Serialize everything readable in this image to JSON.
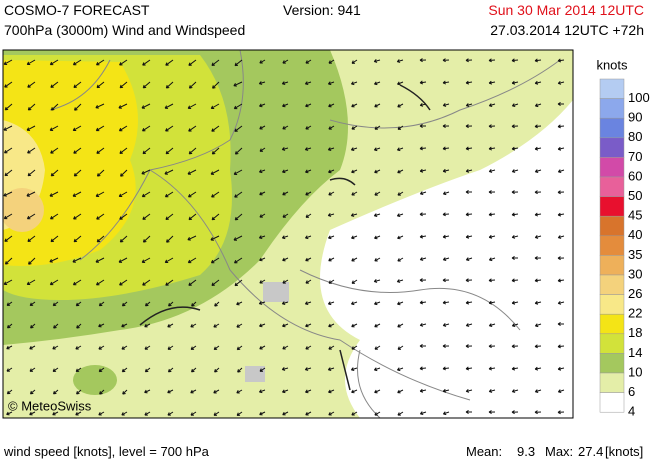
{
  "header": {
    "title": "COSMO-7 FORECAST",
    "version": "Version: 941",
    "valid_time": "Sun 30 Mar 2014 12UTC",
    "subtitle": "700hPa (3000m) Wind and Windspeed",
    "run_time": "27.03.2014 12UTC +72h"
  },
  "map": {
    "copyright": "© MeteoSwiss"
  },
  "legend": {
    "unit": "knots",
    "levels": [
      {
        "value": 100,
        "color": "#b4ccf2"
      },
      {
        "value": 90,
        "color": "#8ca8ec"
      },
      {
        "value": 80,
        "color": "#6a84e0"
      },
      {
        "value": 70,
        "color": "#7a5cc8"
      },
      {
        "value": 60,
        "color": "#d24aa8"
      },
      {
        "value": 50,
        "color": "#e8609a"
      },
      {
        "value": 45,
        "color": "#e8102e"
      },
      {
        "value": 40,
        "color": "#d8742c"
      },
      {
        "value": 35,
        "color": "#e48c3c"
      },
      {
        "value": 30,
        "color": "#eeb05a"
      },
      {
        "value": 26,
        "color": "#f4d27c"
      },
      {
        "value": 22,
        "color": "#f8e888"
      },
      {
        "value": 18,
        "color": "#f4e416"
      },
      {
        "value": 14,
        "color": "#d2e23a"
      },
      {
        "value": 10,
        "color": "#a4c85e"
      },
      {
        "value": 6,
        "color": "#e4eea8"
      },
      {
        "value": 4,
        "color": "#ffffff"
      }
    ]
  },
  "footer": {
    "description": "wind speed [knots], level = 700 hPa",
    "mean_label": "Mean:",
    "mean": 9.3,
    "max_label": "Max:",
    "max": 27.4,
    "unit": "[knots]"
  }
}
